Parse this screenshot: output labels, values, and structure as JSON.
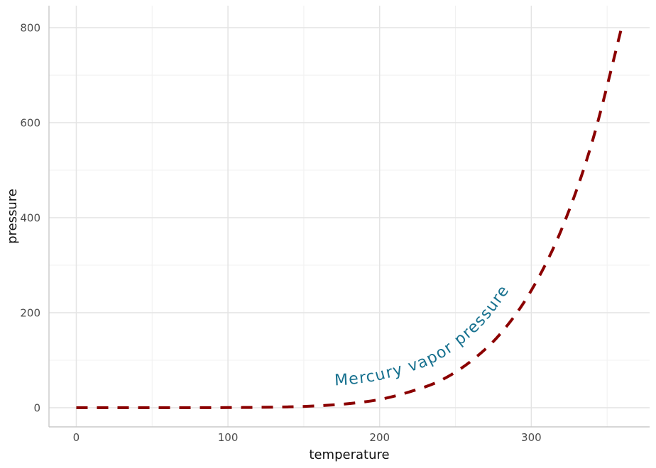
{
  "page": {
    "background": "#FFFFFF"
  },
  "chart_data": {
    "type": "line",
    "title": "",
    "xlabel": "temperature",
    "ylabel": "pressure",
    "x": [
      0,
      20,
      40,
      60,
      80,
      100,
      120,
      140,
      160,
      180,
      200,
      220,
      240,
      260,
      280,
      300,
      320,
      340,
      360
    ],
    "series": [
      {
        "name": "Mercury vapor pressure",
        "values": [
          0.0002,
          0.0012,
          0.006,
          0.03,
          0.09,
          0.27,
          0.75,
          1.85,
          4.2,
          8.8,
          17.3,
          33.7,
          57.0,
          97.5,
          157.0,
          247.0,
          376.0,
          558.0,
          806.0
        ],
        "line_color": "#8B0000",
        "line_style": "dashed",
        "line_width": 4,
        "label_color": "#17718F"
      }
    ],
    "x_ticks": {
      "major": [
        0,
        100,
        200,
        300
      ],
      "minor": [
        50,
        150,
        250,
        350
      ]
    },
    "y_ticks": {
      "major": [
        0,
        200,
        400,
        600,
        800
      ],
      "minor": [
        100,
        300,
        500,
        700
      ]
    },
    "xlim": [
      -18,
      378
    ],
    "ylim": [
      -40.3,
      846.3
    ],
    "grid": "major+minor",
    "legend": "none",
    "colors": {
      "grid_major": "#E4E4E4",
      "grid_minor": "#F1F1F1",
      "axis_line": "#C9C9C9",
      "tick_label": "#4D4D4D",
      "axis_title": "#111111"
    }
  }
}
